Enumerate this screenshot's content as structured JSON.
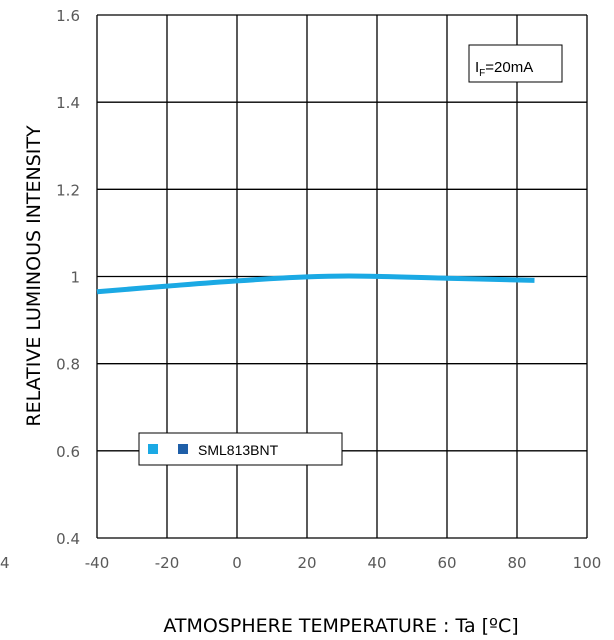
{
  "chart_data": {
    "type": "line",
    "xlabel": "ATMOSPHERE TEMPERATURE : Ta [ºC]",
    "ylabel": "RELATIVE LUMINOUS INTENSITY",
    "xlim": [
      -40,
      100
    ],
    "ylim": [
      0.4,
      1.6
    ],
    "x_ticks": [
      "-40",
      "-20",
      "0",
      "20",
      "40",
      "60",
      "80",
      "100"
    ],
    "y_ticks": [
      "0.4",
      "0.6",
      "0.8",
      "1",
      "1.2",
      "1.4",
      "1.6"
    ],
    "left_edge_label": "4",
    "grid": true,
    "condition": {
      "main": "I",
      "sub": "F",
      "value": "=20mA"
    },
    "legend_position": "bottom-left",
    "series": [
      {
        "name": "SML813BNT",
        "color": "#1BA9E4",
        "legend_colors": [
          "#1BA9E4",
          "#1F5FA8"
        ],
        "x": [
          -40,
          -20,
          0,
          20,
          35,
          60,
          85
        ],
        "y": [
          0.965,
          0.978,
          0.99,
          0.999,
          1.001,
          0.996,
          0.991
        ]
      }
    ]
  }
}
